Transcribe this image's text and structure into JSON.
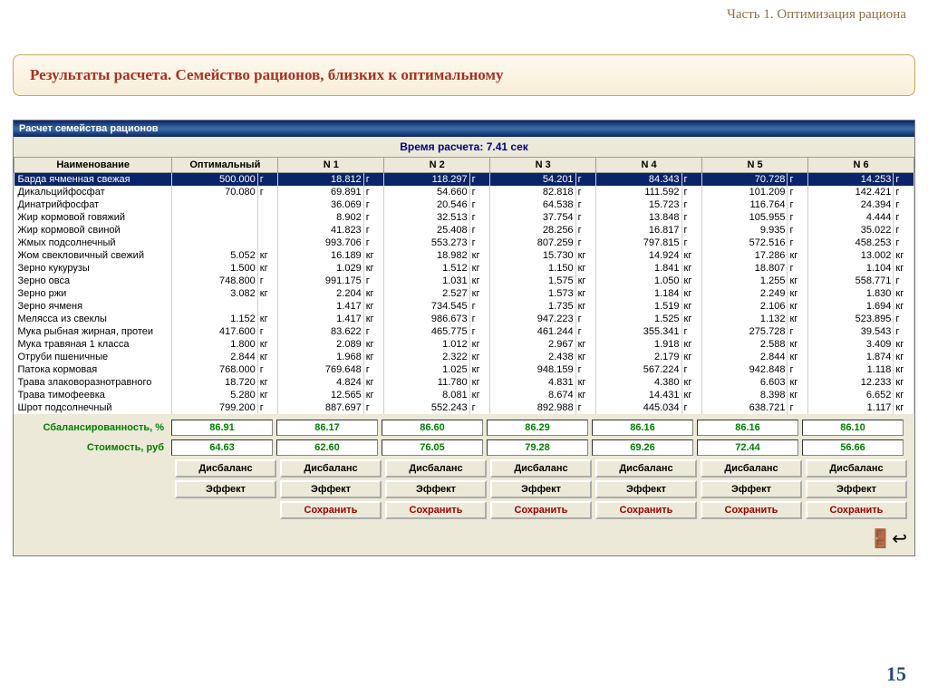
{
  "breadcrumb": "Часть 1. Оптимизация рациона",
  "banner_title": "Результаты расчета. Семейство рационов, близких к оптимальному",
  "win_title": "Расчет семейства рационов",
  "time_label": "Время расчета:",
  "time_value": "7.41 сек",
  "columns": [
    "Наименование",
    "Оптимальный",
    "N 1",
    "N 2",
    "N 3",
    "N 4",
    "N 5",
    "N 6"
  ],
  "rows": [
    {
      "name": "Барда ячменная свежая",
      "selected": true,
      "cells": [
        [
          "500.000",
          "г"
        ],
        [
          "18.812",
          "г"
        ],
        [
          "118.297",
          "г"
        ],
        [
          "54.201",
          "г"
        ],
        [
          "84.343",
          "г"
        ],
        [
          "70.728",
          "г"
        ],
        [
          "14.253",
          "г"
        ]
      ]
    },
    {
      "name": "Дикальцийфосфат",
      "cells": [
        [
          "70.080",
          "г"
        ],
        [
          "69.891",
          "г"
        ],
        [
          "54.660",
          "г"
        ],
        [
          "82.818",
          "г"
        ],
        [
          "111.592",
          "г"
        ],
        [
          "101.209",
          "г"
        ],
        [
          "142.421",
          "г"
        ]
      ]
    },
    {
      "name": "Динатрийфосфат",
      "cells": [
        [
          "",
          ""
        ],
        [
          "36.069",
          "г"
        ],
        [
          "20.546",
          "г"
        ],
        [
          "64.538",
          "г"
        ],
        [
          "15.723",
          "г"
        ],
        [
          "116.764",
          "г"
        ],
        [
          "24.394",
          "г"
        ]
      ]
    },
    {
      "name": "Жир кормовой говяжий",
      "cells": [
        [
          "",
          ""
        ],
        [
          "8.902",
          "г"
        ],
        [
          "32.513",
          "г"
        ],
        [
          "37.754",
          "г"
        ],
        [
          "13.848",
          "г"
        ],
        [
          "105.955",
          "г"
        ],
        [
          "4.444",
          "г"
        ]
      ]
    },
    {
      "name": "Жир кормовой свиной",
      "cells": [
        [
          "",
          ""
        ],
        [
          "41.823",
          "г"
        ],
        [
          "25.408",
          "г"
        ],
        [
          "28.256",
          "г"
        ],
        [
          "16.817",
          "г"
        ],
        [
          "9.935",
          "г"
        ],
        [
          "35.022",
          "г"
        ]
      ]
    },
    {
      "name": "Жмых подсолнечный",
      "cells": [
        [
          "",
          ""
        ],
        [
          "993.706",
          "г"
        ],
        [
          "553.273",
          "г"
        ],
        [
          "807.259",
          "г"
        ],
        [
          "797.815",
          "г"
        ],
        [
          "572.516",
          "г"
        ],
        [
          "458.253",
          "г"
        ]
      ]
    },
    {
      "name": "Жом свекловичный свежий",
      "cells": [
        [
          "5.052",
          "кг"
        ],
        [
          "16.189",
          "кг"
        ],
        [
          "18.982",
          "кг"
        ],
        [
          "15.730",
          "кг"
        ],
        [
          "14.924",
          "кг"
        ],
        [
          "17.286",
          "кг"
        ],
        [
          "13.002",
          "кг"
        ]
      ]
    },
    {
      "name": "Зерно кукурузы",
      "cells": [
        [
          "1.500",
          "кг"
        ],
        [
          "1.029",
          "кг"
        ],
        [
          "1.512",
          "кг"
        ],
        [
          "1.150",
          "кг"
        ],
        [
          "1.841",
          "кг"
        ],
        [
          "18.807",
          "г"
        ],
        [
          "1.104",
          "кг"
        ]
      ]
    },
    {
      "name": "Зерно овса",
      "cells": [
        [
          "748.800",
          "г"
        ],
        [
          "991.175",
          "г"
        ],
        [
          "1.031",
          "кг"
        ],
        [
          "1.575",
          "кг"
        ],
        [
          "1.050",
          "кг"
        ],
        [
          "1.255",
          "кг"
        ],
        [
          "558.771",
          "г"
        ]
      ]
    },
    {
      "name": "Зерно ржи",
      "cells": [
        [
          "3.082",
          "кг"
        ],
        [
          "2.204",
          "кг"
        ],
        [
          "2.527",
          "кг"
        ],
        [
          "1.573",
          "кг"
        ],
        [
          "1.184",
          "кг"
        ],
        [
          "2.249",
          "кг"
        ],
        [
          "1.830",
          "кг"
        ]
      ]
    },
    {
      "name": "Зерно ячменя",
      "cells": [
        [
          "",
          ""
        ],
        [
          "1.417",
          "кг"
        ],
        [
          "734.545",
          "г"
        ],
        [
          "1.735",
          "кг"
        ],
        [
          "1.519",
          "кг"
        ],
        [
          "2.106",
          "кг"
        ],
        [
          "1.694",
          "кг"
        ]
      ]
    },
    {
      "name": "Мелясса из свеклы",
      "cells": [
        [
          "1.152",
          "кг"
        ],
        [
          "1.417",
          "кг"
        ],
        [
          "986.673",
          "г"
        ],
        [
          "947.223",
          "г"
        ],
        [
          "1.525",
          "кг"
        ],
        [
          "1.132",
          "кг"
        ],
        [
          "523.895",
          "г"
        ]
      ]
    },
    {
      "name": "Мука рыбная жирная, протеи",
      "cells": [
        [
          "417.600",
          "г"
        ],
        [
          "83.622",
          "г"
        ],
        [
          "465.775",
          "г"
        ],
        [
          "461.244",
          "г"
        ],
        [
          "355.341",
          "г"
        ],
        [
          "275.728",
          "г"
        ],
        [
          "39.543",
          "г"
        ]
      ]
    },
    {
      "name": "Мука травяная 1 класса",
      "cells": [
        [
          "1.800",
          "кг"
        ],
        [
          "2.089",
          "кг"
        ],
        [
          "1.012",
          "кг"
        ],
        [
          "2.967",
          "кг"
        ],
        [
          "1.918",
          "кг"
        ],
        [
          "2.588",
          "кг"
        ],
        [
          "3.409",
          "кг"
        ]
      ]
    },
    {
      "name": "Отруби пшеничные",
      "cells": [
        [
          "2.844",
          "кг"
        ],
        [
          "1.968",
          "кг"
        ],
        [
          "2.322",
          "кг"
        ],
        [
          "2.438",
          "кг"
        ],
        [
          "2.179",
          "кг"
        ],
        [
          "2.844",
          "кг"
        ],
        [
          "1.874",
          "кг"
        ]
      ]
    },
    {
      "name": "Патока кормовая",
      "cells": [
        [
          "768.000",
          "г"
        ],
        [
          "769.648",
          "г"
        ],
        [
          "1.025",
          "кг"
        ],
        [
          "948.159",
          "г"
        ],
        [
          "567.224",
          "г"
        ],
        [
          "942.848",
          "г"
        ],
        [
          "1.118",
          "кг"
        ]
      ]
    },
    {
      "name": "Трава злаковоразнотравного",
      "cells": [
        [
          "18.720",
          "кг"
        ],
        [
          "4.824",
          "кг"
        ],
        [
          "11.780",
          "кг"
        ],
        [
          "4.831",
          "кг"
        ],
        [
          "4.380",
          "кг"
        ],
        [
          "6.603",
          "кг"
        ],
        [
          "12.233",
          "кг"
        ]
      ]
    },
    {
      "name": "Трава тимофеевка",
      "cells": [
        [
          "5.280",
          "кг"
        ],
        [
          "12.565",
          "кг"
        ],
        [
          "8.081",
          "кг"
        ],
        [
          "8.674",
          "кг"
        ],
        [
          "14.431",
          "кг"
        ],
        [
          "8.398",
          "кг"
        ],
        [
          "6.652",
          "кг"
        ]
      ]
    },
    {
      "name": "Шрот подсолнечный",
      "cells": [
        [
          "799.200",
          "г"
        ],
        [
          "887.697",
          "г"
        ],
        [
          "552.243",
          "г"
        ],
        [
          "892.988",
          "г"
        ],
        [
          "445.034",
          "г"
        ],
        [
          "638.721",
          "г"
        ],
        [
          "1.117",
          "кг"
        ]
      ]
    }
  ],
  "summary": {
    "balance_label": "Сбалансированность, %",
    "balance": [
      "86.91",
      "86.17",
      "86.60",
      "86.29",
      "86.16",
      "86.16",
      "86.10"
    ],
    "cost_label": "Стоимость, руб",
    "cost": [
      "64.63",
      "62.60",
      "76.05",
      "79.28",
      "69.26",
      "72.44",
      "56.66"
    ]
  },
  "buttons": {
    "disbalance": "Дисбаланс",
    "effect": "Эффект",
    "save": "Сохранить"
  },
  "slide_number": "15",
  "colors": {
    "titlebar": "#0a246a",
    "panel": "#ece9d8",
    "accent_red": "#a93222",
    "green": "#008000"
  }
}
